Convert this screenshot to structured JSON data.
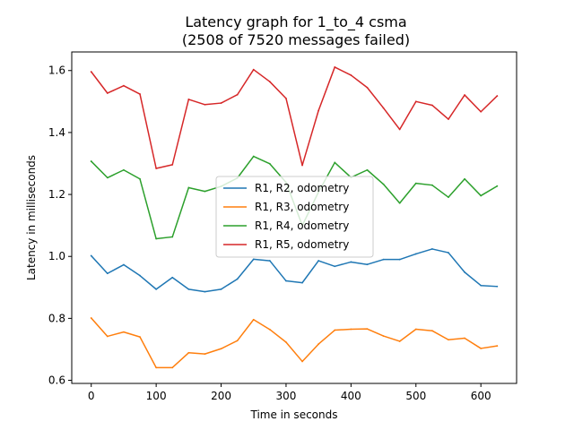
{
  "chart_data": {
    "type": "line",
    "title": "Latency graph for 1_to_4 csma",
    "subtitle": "(2508 of 7520 messages failed)",
    "xlabel": "Time in seconds",
    "ylabel": "Latency in milliseconds",
    "xlim": [
      -30,
      655
    ],
    "ylim": [
      0.59,
      1.66
    ],
    "xticks": [
      0,
      100,
      200,
      300,
      400,
      500,
      600
    ],
    "yticks": [
      0.6,
      0.8,
      1.0,
      1.2,
      1.4,
      1.6
    ],
    "ytick_labels": [
      "0.6",
      "0.8",
      "1.0",
      "1.2",
      "1.4",
      "1.6"
    ],
    "grid": false,
    "legend_position": "center",
    "x": [
      0,
      25,
      50,
      75,
      100,
      125,
      150,
      175,
      200,
      225,
      250,
      275,
      300,
      325,
      350,
      375,
      400,
      425,
      450,
      475,
      500,
      525,
      550,
      575,
      600,
      625
    ],
    "series": [
      {
        "name": "R1, R2, odometry",
        "color": "#1f77b4",
        "values": [
          1.002,
          0.945,
          0.973,
          0.938,
          0.894,
          0.932,
          0.894,
          0.886,
          0.894,
          0.927,
          0.991,
          0.986,
          0.921,
          0.915,
          0.986,
          0.968,
          0.982,
          0.974,
          0.99,
          0.99,
          1.008,
          1.024,
          1.012,
          0.949,
          0.906,
          0.903
        ]
      },
      {
        "name": "R1, R3, odometry",
        "color": "#ff7f0e",
        "values": [
          0.801,
          0.742,
          0.756,
          0.74,
          0.641,
          0.641,
          0.689,
          0.685,
          0.702,
          0.728,
          0.796,
          0.764,
          0.723,
          0.661,
          0.717,
          0.762,
          0.765,
          0.766,
          0.743,
          0.726,
          0.765,
          0.76,
          0.731,
          0.736,
          0.703,
          0.711
        ]
      },
      {
        "name": "R1, R4, odometry",
        "color": "#2ca02c",
        "values": [
          1.307,
          1.254,
          1.279,
          1.25,
          1.057,
          1.063,
          1.222,
          1.21,
          1.226,
          1.253,
          1.323,
          1.299,
          1.239,
          1.1,
          1.208,
          1.303,
          1.255,
          1.279,
          1.233,
          1.172,
          1.236,
          1.23,
          1.191,
          1.25,
          1.196,
          1.227
        ]
      },
      {
        "name": "R1, R5, odometry",
        "color": "#d62728",
        "values": [
          1.596,
          1.527,
          1.551,
          1.524,
          1.284,
          1.296,
          1.507,
          1.49,
          1.495,
          1.522,
          1.603,
          1.564,
          1.51,
          1.294,
          1.471,
          1.611,
          1.585,
          1.545,
          1.479,
          1.41,
          1.5,
          1.488,
          1.443,
          1.521,
          1.467,
          1.518
        ]
      }
    ]
  }
}
